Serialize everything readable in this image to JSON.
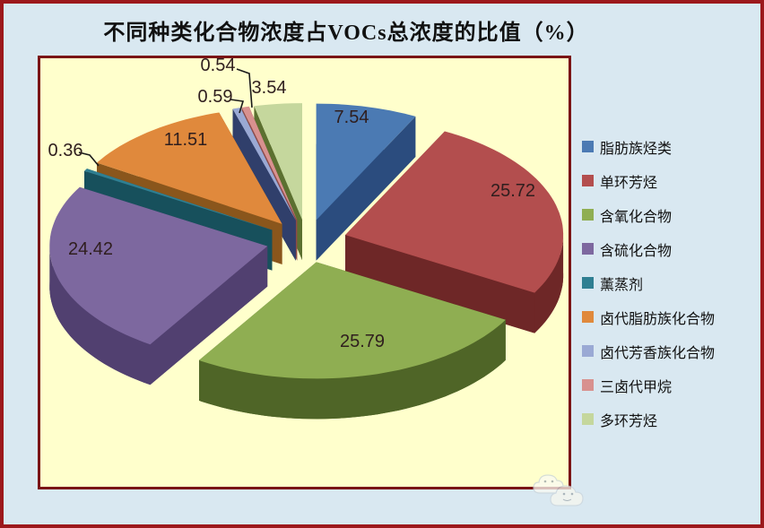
{
  "chart_data": {
    "type": "pie",
    "style": "3d-exploded",
    "title": "不同种类化合物浓度占VOCs总浓度的比值（%）",
    "unit": "%",
    "legend_position": "right",
    "grid": false,
    "slices": [
      {
        "label": "脂肪族烃类",
        "value": 7.54,
        "color": "#4b7ab3",
        "dark_color": "#2b4c7e"
      },
      {
        "label": "单环芳烃",
        "value": 25.72,
        "color": "#b34e4e",
        "dark_color": "#6e2727"
      },
      {
        "label": "含氧化合物",
        "value": 25.79,
        "color": "#8fae52",
        "dark_color": "#4f6527"
      },
      {
        "label": "含硫化合物",
        "value": 24.42,
        "color": "#7d689f",
        "dark_color": "#514070"
      },
      {
        "label": "薰蒸剂",
        "value": 0.36,
        "color": "#2f7f92",
        "dark_color": "#17505c"
      },
      {
        "label": "卤代脂肪族化合物",
        "value": 11.51,
        "color": "#e0893c",
        "dark_color": "#8a561c"
      },
      {
        "label": "卤代芳香族化合物",
        "value": 0.59,
        "color": "#9aa9d4",
        "dark_color": "#303f6b"
      },
      {
        "label": "三卤代甲烷",
        "value": 0.54,
        "color": "#d8918f",
        "dark_color": "#8d4a48"
      },
      {
        "label": "多环芳烃",
        "value": 3.54,
        "color": "#c5d79d",
        "dark_color": "#5c7030"
      }
    ]
  },
  "colors": {
    "page_background": "#d9e8f1",
    "outer_frame": "#9c191c",
    "plot_background": "#ffffcc",
    "plot_border": "#7a1416",
    "title_text": "#111111",
    "label_text": "#2f1e1e",
    "legend_text": "#111111"
  }
}
